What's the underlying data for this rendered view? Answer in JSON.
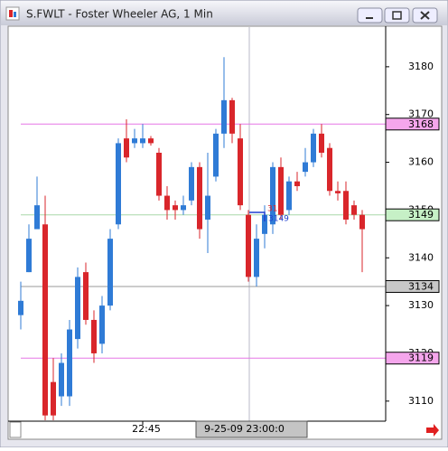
{
  "chart_data": {
    "type": "candlestick",
    "title": "S.FWLT - Foster Wheeler AG, 1 Min",
    "categories": [
      null,
      null,
      null,
      null,
      null,
      null,
      null,
      null,
      null,
      null,
      null,
      null,
      null,
      null,
      null,
      "22:45",
      null,
      null,
      null,
      null,
      null,
      null,
      null,
      null,
      null,
      null,
      null,
      null,
      null,
      null,
      null,
      null,
      null,
      null,
      null,
      null,
      null,
      null,
      null,
      null,
      null,
      null,
      null
    ],
    "open": [
      3128,
      3137,
      3146,
      3147,
      3114,
      3111,
      3111,
      3123,
      3137,
      3127,
      3122,
      3130,
      3147,
      3165,
      3164,
      3164,
      3165,
      3162,
      3153,
      3151,
      3150,
      3152,
      3159,
      3148,
      3157,
      3166,
      3173,
      3165,
      3149,
      3136,
      3145,
      3147,
      3159,
      3150,
      3156,
      3158,
      3160,
      3166,
      3163,
      3154,
      3154,
      3151,
      3149
    ],
    "high": [
      3135,
      3147,
      3157,
      3153,
      3119,
      3120,
      3127,
      3138,
      3139,
      3129,
      3132,
      3146,
      3165,
      3169,
      3167,
      3168,
      3165.5,
      3163,
      3155,
      3152,
      3153,
      3160,
      3160,
      3162,
      3167,
      3182,
      3173.5,
      3168,
      3150,
      3147,
      3151,
      3160,
      3161,
      3157,
      3158,
      3163,
      3167,
      3168,
      3164,
      3156,
      3156,
      3152,
      3150
    ],
    "low": [
      3125,
      3137,
      3146,
      3106,
      3106,
      3109,
      3109,
      3121,
      3126,
      3118,
      3120,
      3129,
      3146,
      3160,
      3163,
      3163,
      3163.5,
      3152,
      3148,
      3148,
      3149,
      3151,
      3144,
      3141,
      3156,
      3163,
      3164,
      3150,
      3135,
      3134,
      3142,
      3145,
      3148,
      3149,
      3154,
      3157,
      3159,
      3161,
      3153,
      3152,
      3147,
      3148,
      3137
    ],
    "close": [
      3131,
      3144,
      3151,
      3107,
      3107,
      3118,
      3125,
      3136,
      3127,
      3120,
      3130,
      3144,
      3164,
      3161,
      3165,
      3165,
      3164,
      3153,
      3150,
      3150,
      3151,
      3159,
      3146,
      3153,
      3166,
      3173,
      3166,
      3151,
      3136,
      3144,
      3149,
      3159,
      3149,
      3156,
      3155,
      3160,
      3166,
      3162,
      3154,
      3153.5,
      3148,
      3149,
      3146
    ],
    "up_color": "#2f7bd6",
    "down_color": "#d9262b",
    "ylim": [
      3105.8,
      3188.3
    ],
    "yticks": [
      3110,
      3120,
      3130,
      3140,
      3150,
      3160,
      3170,
      3180
    ],
    "levels": [
      {
        "value": 3168,
        "color": "#e676e6",
        "box": "#f5a6ec"
      },
      {
        "value": 3149,
        "color": "#a9d8a9",
        "box": "#c6f0c6"
      },
      {
        "value": 3134,
        "color": "#9a9a9a",
        "box": "#c8c8c8"
      },
      {
        "value": 3119,
        "color": "#e676e6",
        "box": "#f5a6ec"
      }
    ],
    "annotations": [
      {
        "text": "314",
        "color": "#d9262b"
      },
      {
        "text": "3149",
        "color": "#1f3fd0"
      }
    ],
    "x_cursor_label": "9-25-09 23:00:0"
  }
}
